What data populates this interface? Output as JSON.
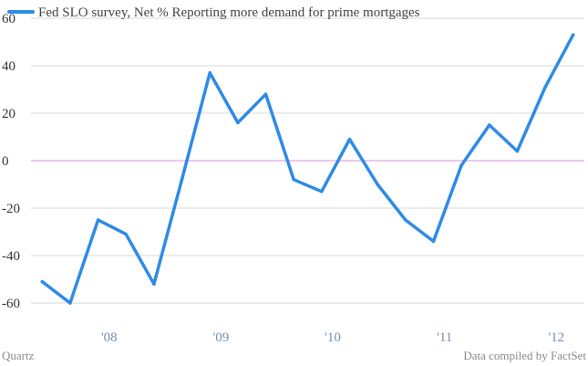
{
  "chart_data": {
    "type": "line",
    "title": "",
    "xlabel": "",
    "ylabel": "",
    "ylim": [
      -60,
      60
    ],
    "yticks": [
      60,
      40,
      20,
      0,
      -20,
      -40,
      -60
    ],
    "ytick_labels": [
      "60",
      "40",
      "20",
      "0",
      "-20",
      "-40",
      "-60"
    ],
    "xtick_labels": [
      "'08",
      "'09",
      "'10",
      "'11",
      "'12"
    ],
    "xtick_positions": [
      2007.9,
      2008.9,
      2009.9,
      2010.9,
      2011.9
    ],
    "xlim": [
      2007.2,
      2012.15
    ],
    "zero_line": true,
    "grid": true,
    "series": [
      {
        "name": "Fed SLO survey, Net % Reporting more demand for prime mortgages",
        "color": "#2e8be6",
        "x": [
          2007.3,
          2007.55,
          2007.8,
          2008.05,
          2008.3,
          2008.55,
          2008.8,
          2009.05,
          2009.3,
          2009.55,
          2009.8,
          2010.05,
          2010.3,
          2010.55,
          2010.8,
          2011.05,
          2011.3,
          2011.55,
          2011.8,
          2012.05
        ],
        "values": [
          -51,
          -60,
          -25,
          -31,
          -52,
          -8,
          37,
          16,
          28,
          -8,
          -13,
          9,
          -10,
          -25,
          -34,
          -2,
          15,
          4,
          31,
          53
        ]
      }
    ],
    "zero_line_color": "#e8a3e8",
    "grid_color": "#d9d9d9"
  },
  "footer": {
    "source_left": "Quartz",
    "source_right": "Data compiled by FactSet"
  }
}
